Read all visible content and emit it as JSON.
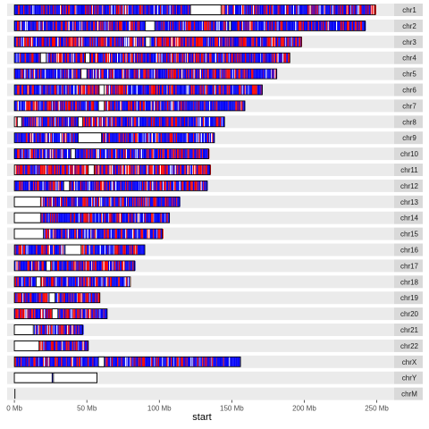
{
  "chart_data": {
    "type": "faceted-ideogram",
    "xlabel": "start",
    "x_ticks": [
      {
        "value": 0,
        "label": "0 Mb"
      },
      {
        "value": 50,
        "label": "50 Mb"
      },
      {
        "value": 100,
        "label": "100 Mb"
      },
      {
        "value": 150,
        "label": "150 Mb"
      },
      {
        "value": 200,
        "label": "200 Mb"
      },
      {
        "value": 250,
        "label": "250 Mb"
      }
    ],
    "xlim": [
      -5,
      262
    ],
    "x_unit": "Mb",
    "colors": {
      "segment_a": "#0000ff",
      "segment_b": "#ff0000",
      "panel_bg": "#ebebeb",
      "strip_bg": "#d9d9d9",
      "outline": "#000000"
    },
    "chromosomes": [
      {
        "name": "chr1",
        "length": 249.0,
        "gaps": [
          [
            121.5,
            142.5
          ]
        ],
        "red": 0.3
      },
      {
        "name": "chr2",
        "length": 242.0,
        "gaps": [
          [
            90.4,
            96.8
          ],
          [
            148.0,
            149.5
          ]
        ],
        "red": 0.3
      },
      {
        "name": "chr3",
        "length": 198.0,
        "gaps": [
          [
            90.5,
            93.7
          ]
        ],
        "red": 0.55
      },
      {
        "name": "chr4",
        "length": 190.0,
        "gaps": [
          [
            18.0,
            22.0
          ],
          [
            49.0,
            52.0
          ]
        ],
        "red": 0.35
      },
      {
        "name": "chr5",
        "length": 181.0,
        "gaps": [
          [
            46.0,
            50.0
          ]
        ],
        "red": 0.3
      },
      {
        "name": "chr6",
        "length": 171.0,
        "gaps": [
          [
            58.5,
            62.0
          ]
        ],
        "red": 0.3
      },
      {
        "name": "chr7",
        "length": 159.0,
        "gaps": [
          [
            58.0,
            62.0
          ]
        ],
        "red": 0.35
      },
      {
        "name": "chr8",
        "length": 145.0,
        "gaps": [
          [
            2.0,
            5.0
          ],
          [
            44.0,
            47.0
          ]
        ],
        "red": 0.35
      },
      {
        "name": "chr9",
        "length": 138.0,
        "gaps": [
          [
            44.0,
            60.0
          ]
        ],
        "red": 0.25
      },
      {
        "name": "chr10",
        "length": 134.0,
        "gaps": [
          [
            39.0,
            42.0
          ]
        ],
        "red": 0.35
      },
      {
        "name": "chr11",
        "length": 135.0,
        "gaps": [
          [
            51.0,
            55.0
          ]
        ],
        "red": 0.55
      },
      {
        "name": "chr12",
        "length": 133.0,
        "gaps": [
          [
            34.0,
            38.0
          ]
        ],
        "red": 0.25
      },
      {
        "name": "chr13",
        "length": 114.0,
        "gaps": [
          [
            0.0,
            18.0
          ]
        ],
        "red": 0.3
      },
      {
        "name": "chr14",
        "length": 107.0,
        "gaps": [
          [
            0.0,
            18.0
          ]
        ],
        "red": 0.3
      },
      {
        "name": "chr15",
        "length": 102.0,
        "gaps": [
          [
            0.0,
            20.0
          ]
        ],
        "red": 0.3
      },
      {
        "name": "chr16",
        "length": 90.0,
        "gaps": [
          [
            35.0,
            46.0
          ]
        ],
        "red": 0.3
      },
      {
        "name": "chr17",
        "length": 83.0,
        "gaps": [
          [
            22.0,
            25.0
          ]
        ],
        "red": 0.35
      },
      {
        "name": "chr18",
        "length": 80.0,
        "gaps": [
          [
            15.0,
            18.0
          ]
        ],
        "red": 0.3
      },
      {
        "name": "chr19",
        "length": 59.0,
        "gaps": [
          [
            24.0,
            28.0
          ]
        ],
        "red": 0.4
      },
      {
        "name": "chr20",
        "length": 64.0,
        "gaps": [
          [
            26.0,
            30.0
          ]
        ],
        "red": 0.4
      },
      {
        "name": "chr21",
        "length": 47.0,
        "gaps": [
          [
            0.0,
            13.0
          ]
        ],
        "red": 0.35
      },
      {
        "name": "chr22",
        "length": 51.0,
        "gaps": [
          [
            0.0,
            17.0
          ]
        ],
        "red": 0.3
      },
      {
        "name": "chrX",
        "length": 156.0,
        "gaps": [
          [
            58.0,
            62.0
          ]
        ],
        "red": 0.2
      },
      {
        "name": "chrY",
        "length": 57.0,
        "gaps": [
          [
            0.0,
            26.0
          ],
          [
            27.0,
            57.0
          ]
        ],
        "red": 0.0,
        "sparse": [
          26.2
        ]
      },
      {
        "name": "chrM",
        "length": 0.5,
        "gaps": [],
        "red": 0.0,
        "line_only": true
      }
    ]
  }
}
